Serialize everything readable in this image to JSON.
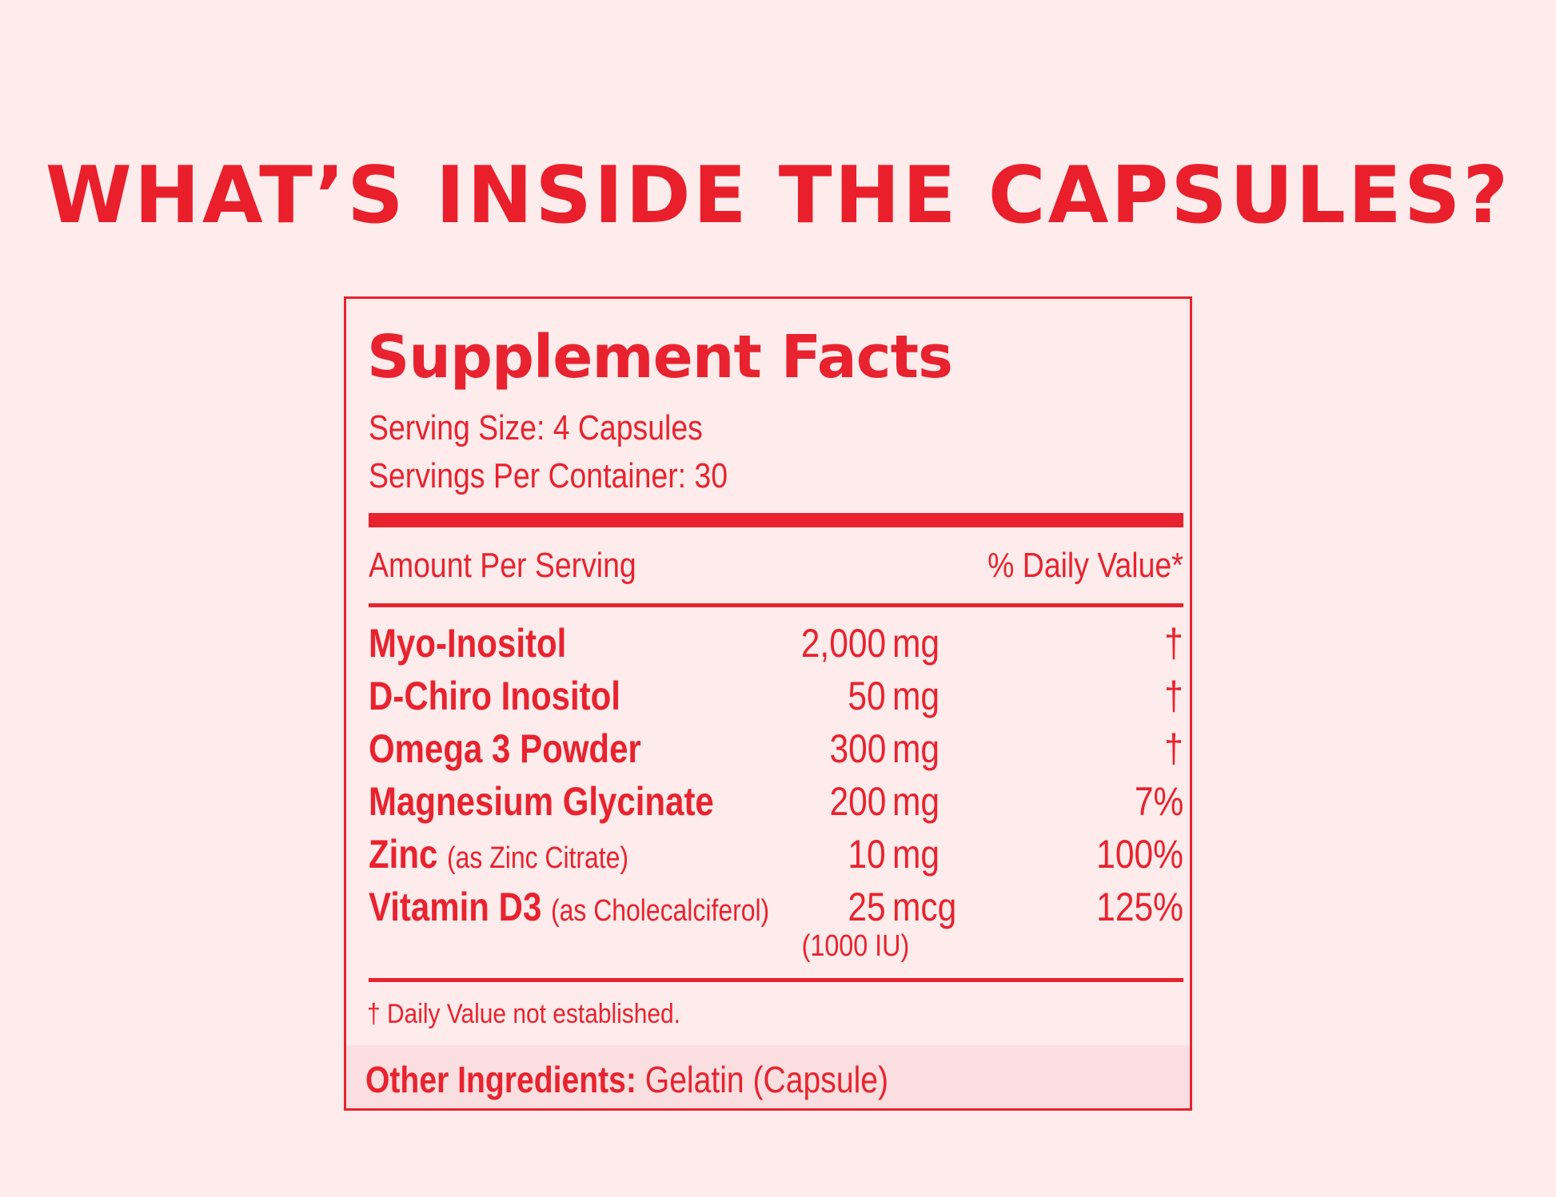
{
  "headline": "WHAT’S INSIDE THE CAPSULES?",
  "facts": {
    "title": "Supplement Facts",
    "serving_size": "Serving Size: 4 Capsules",
    "servings_per_container": "Servings Per Container: 30",
    "amount_header": "Amount Per Serving",
    "dv_header": "% Daily Value*",
    "rows": [
      {
        "name": "Myo-Inositol",
        "note": "",
        "amount": "2,000",
        "unit": "mg",
        "dv": "†"
      },
      {
        "name": "D-Chiro Inositol",
        "note": "",
        "amount": "50",
        "unit": "mg",
        "dv": "†"
      },
      {
        "name": "Omega 3 Powder",
        "note": "",
        "amount": "300",
        "unit": "mg",
        "dv": "†"
      },
      {
        "name": "Magnesium Glycinate",
        "note": "",
        "amount": "200",
        "unit": "mg",
        "dv": "7%"
      },
      {
        "name": "Zinc",
        "note": "(as Zinc Citrate)",
        "amount": "10",
        "unit": "mg",
        "dv": "100%"
      },
      {
        "name": "Vitamin D3",
        "note": "(as Cholecalciferol)",
        "amount": "25",
        "unit": "mcg",
        "dv": "125%",
        "subnote": "(1000 IU)"
      }
    ],
    "footnote": "† Daily Value not established.",
    "other_label": "Other Ingredients:",
    "other_value": "Gelatin (Capsule)"
  },
  "colors": {
    "background": "#fdeceb",
    "accent": "#e8232f",
    "band": "#fbdfe0"
  }
}
